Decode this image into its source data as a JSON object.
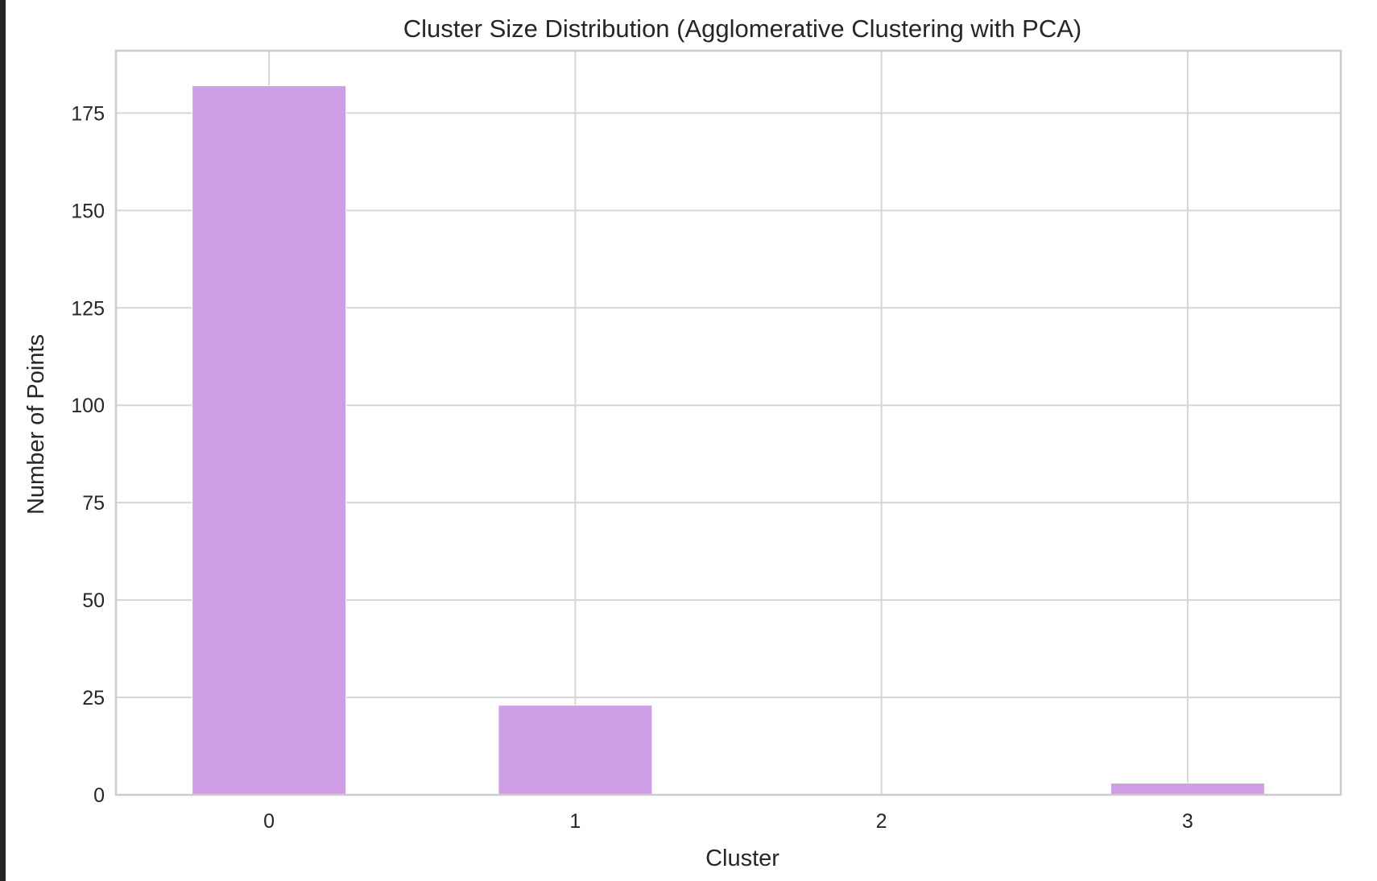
{
  "chart_data": {
    "type": "bar",
    "title": "Cluster Size Distribution (Agglomerative Clustering with PCA)",
    "xlabel": "Cluster",
    "ylabel": "Number of Points",
    "categories": [
      "0",
      "1",
      "2",
      "3"
    ],
    "values": [
      182,
      23,
      0,
      3
    ],
    "ylim": [
      0,
      191
    ],
    "yticks": [
      0,
      25,
      50,
      75,
      100,
      125,
      150,
      175
    ],
    "grid": true,
    "legend": "none",
    "colors": {
      "bar": "#d09ee6",
      "grid": "#d6d6d6",
      "spine": "#cccccc",
      "text": "#262626",
      "background": "#ffffff",
      "frame": "#262626"
    }
  }
}
